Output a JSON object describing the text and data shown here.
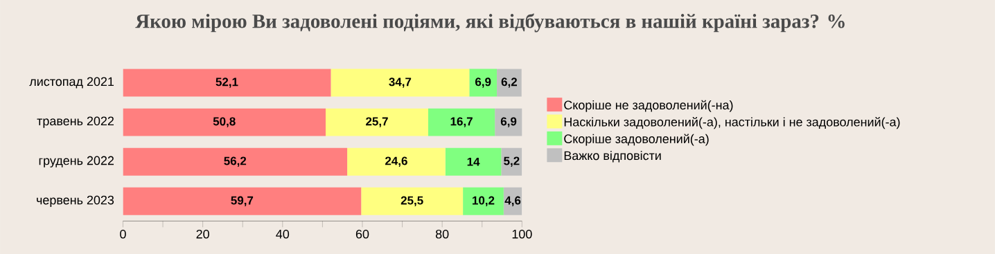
{
  "chart_data": {
    "type": "bar",
    "orientation": "horizontal",
    "stacked": true,
    "title": "Якою мірою Ви задоволені подіями, які відбуваються в нашій країні зараз? %",
    "categories": [
      "листопад 2021",
      "травень 2022",
      "грудень 2022",
      "червень 2023"
    ],
    "series": [
      {
        "name": "Скоріше не задоволений(-на)",
        "color": "#ff7f7f",
        "values": [
          52.1,
          50.8,
          56.2,
          59.7
        ],
        "value_labels": [
          "52,1",
          "50,8",
          "56,2",
          "59,7"
        ]
      },
      {
        "name": "Наскільки задоволений(-а), настільки і не задоволений(-а)",
        "color": "#ffff80",
        "values": [
          34.7,
          25.7,
          24.6,
          25.5
        ],
        "value_labels": [
          "34,7",
          "25,7",
          "24,6",
          "25,5"
        ]
      },
      {
        "name": "Скоріше задоволений(-а)",
        "color": "#80ff80",
        "values": [
          6.9,
          16.7,
          14,
          10.2
        ],
        "value_labels": [
          "6,9",
          "16,7",
          "14",
          "10,2"
        ]
      },
      {
        "name": "Важко відповісти",
        "color": "#c0c0c0",
        "values": [
          6.2,
          6.9,
          5.2,
          4.6
        ],
        "value_labels": [
          "6,2",
          "6,9",
          "5,2",
          "4,6"
        ]
      }
    ],
    "xlim": [
      0,
      100
    ],
    "xticks": [
      0,
      {
        "value": 10,
        "label": null
      },
      20,
      {
        "value": 30,
        "label": null
      },
      40,
      {
        "value": 50,
        "label": null
      },
      60,
      {
        "value": 70,
        "label": null
      },
      80,
      {
        "value": 90,
        "label": null
      },
      100
    ],
    "legend": "right",
    "grid": false
  }
}
